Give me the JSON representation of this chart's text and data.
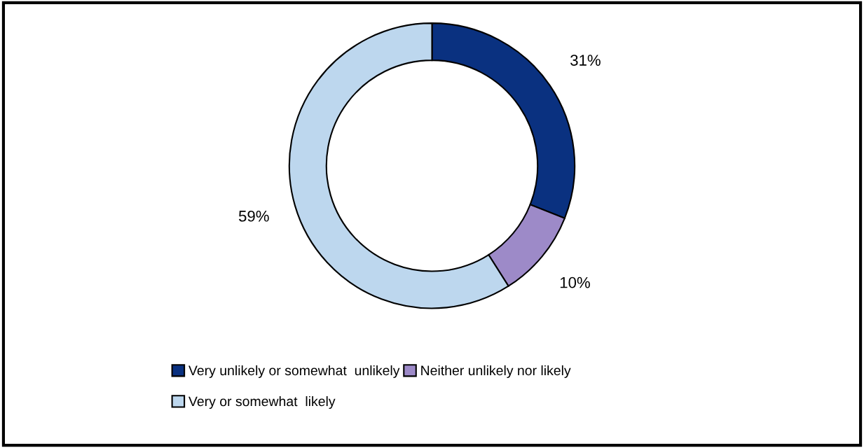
{
  "chart_data": {
    "type": "donut",
    "categories": [
      "Very unlikely or somewhat  unlikely",
      "Neither unlikely nor likely",
      "Very or somewhat  likely"
    ],
    "values": [
      31,
      10,
      59
    ],
    "colors": [
      "#0a3180",
      "#9d8ac8",
      "#bdd7ee"
    ],
    "value_labels": [
      "31%",
      "10%",
      "59%"
    ],
    "legend": "bottom"
  }
}
